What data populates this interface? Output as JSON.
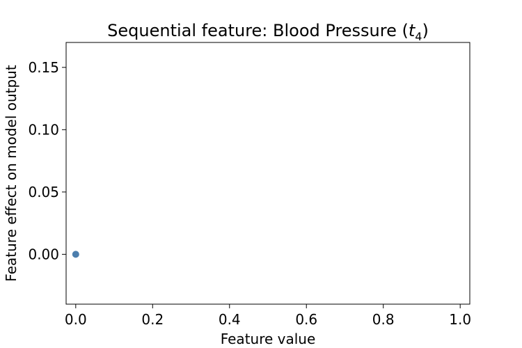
{
  "chart_data": {
    "type": "scatter",
    "title_main": "Sequential feature: Blood Pressure (",
    "title_var": "t",
    "title_sub": "4",
    "title_close": ")",
    "xlabel": "Feature value",
    "ylabel": "Feature effect on model output",
    "xlim": [
      -0.025,
      1.025
    ],
    "ylim": [
      -0.04,
      0.17
    ],
    "xticks": [
      "0.0",
      "0.2",
      "0.4",
      "0.6",
      "0.8",
      "1.0"
    ],
    "yticks": [
      "0.00",
      "0.05",
      "0.10",
      "0.15"
    ],
    "grid": false,
    "point_color": "#4c7ead",
    "points": [
      {
        "x": 0.0,
        "y": 0.0
      }
    ]
  }
}
